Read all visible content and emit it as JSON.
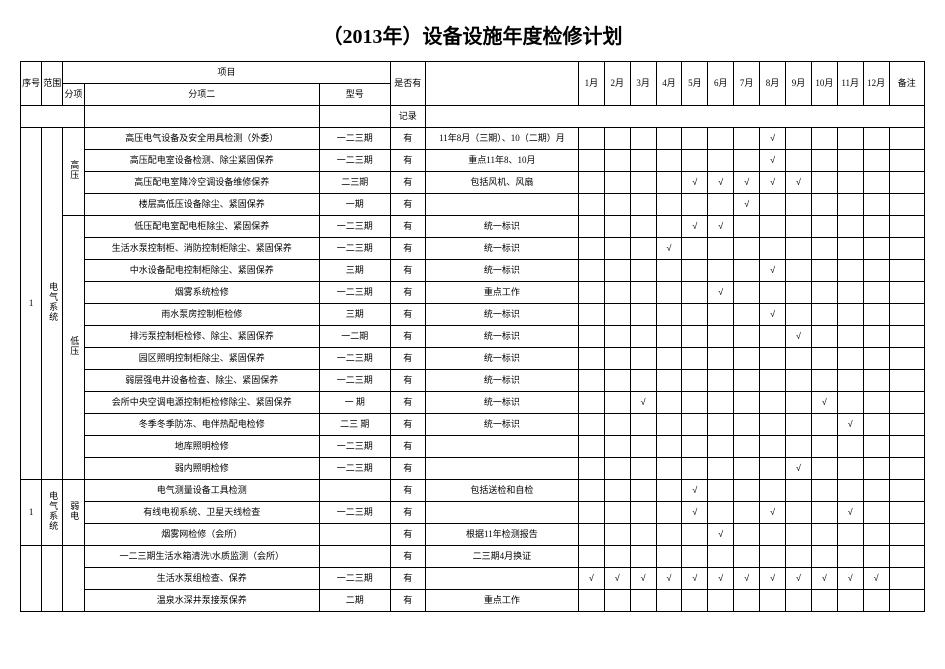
{
  "title": "（2013年）设备设施年度检修计划",
  "headers": {
    "seq": "序号",
    "scope": "范围",
    "project": "项目",
    "sub": "分项",
    "sub2": "分项二",
    "model": "型号",
    "sign": "是否有",
    "record": "记录",
    "months": [
      "1月",
      "2月",
      "3月",
      "4月",
      "5月",
      "6月",
      "7月",
      "8月",
      "9月",
      "10月",
      "11月",
      "12月"
    ],
    "note": "备注"
  },
  "groups": [
    {
      "seq": "1",
      "scope": "电气系统",
      "subgroups": [
        {
          "sub": "高压",
          "rows": [
            {
              "item": "高压电气设备及安全用具检测（外委）",
              "model": "一二三期",
              "sign": "有",
              "wide": "11年8月（三期）、10（二期）月",
              "marks": [
                "",
                "",
                "",
                "",
                "",
                "",
                "",
                "√",
                "",
                "",
                "",
                ""
              ]
            },
            {
              "item": "高压配电室设备检测、除尘紧固保养",
              "model": "一二三期",
              "sign": "有",
              "wide": "重点11年8、10月",
              "marks": [
                "",
                "",
                "",
                "",
                "",
                "",
                "",
                "√",
                "",
                "",
                "",
                ""
              ]
            },
            {
              "item": "高压配电室降冷空调设备维修保养",
              "model": "二三期",
              "sign": "有",
              "wide": "包括风机、风扇",
              "marks": [
                "",
                "",
                "",
                "",
                "√",
                "√",
                "√",
                "√",
                "√",
                "",
                "",
                ""
              ]
            },
            {
              "item": "楼层高低压设备除尘、紧固保养",
              "model": "一期",
              "sign": "有",
              "wide": "",
              "marks": [
                "",
                "",
                "",
                "",
                "",
                "",
                "√",
                "",
                "",
                "",
                "",
                ""
              ]
            }
          ]
        },
        {
          "sub": "低压",
          "rows": [
            {
              "item": "低压配电室配电柜除尘、紧固保养",
              "model": "一二三期",
              "sign": "有",
              "wide": "统一标识",
              "marks": [
                "",
                "",
                "",
                "",
                "√",
                "√",
                "",
                "",
                "",
                "",
                "",
                ""
              ]
            },
            {
              "item": "生活水泵控制柜、消防控制柜除尘、紧固保养",
              "model": "一二三期",
              "sign": "有",
              "wide": "统一标识",
              "marks": [
                "",
                "",
                "",
                "√",
                "",
                "",
                "",
                "",
                "",
                "",
                "",
                ""
              ]
            },
            {
              "item": "中水设备配电控制柜除尘、紧固保养",
              "model": "三期",
              "sign": "有",
              "wide": "统一标识",
              "marks": [
                "",
                "",
                "",
                "",
                "",
                "",
                "",
                "√",
                "",
                "",
                "",
                ""
              ]
            },
            {
              "item": "烟雾系统检修",
              "model": "一二三期",
              "sign": "有",
              "wide": "重点工作",
              "marks": [
                "",
                "",
                "",
                "",
                "",
                "√",
                "",
                "",
                "",
                "",
                "",
                ""
              ]
            },
            {
              "item": "雨水泵房控制柜检修",
              "model": "三期",
              "sign": "有",
              "wide": "统一标识",
              "marks": [
                "",
                "",
                "",
                "",
                "",
                "",
                "",
                "√",
                "",
                "",
                "",
                ""
              ]
            },
            {
              "item": "排污泵控制柜检修、除尘、紧固保养",
              "model": "一二期",
              "sign": "有",
              "wide": "统一标识",
              "marks": [
                "",
                "",
                "",
                "",
                "",
                "",
                "",
                "",
                "√",
                "",
                "",
                ""
              ]
            },
            {
              "item": "园区照明控制柜除尘、紧固保养",
              "model": "一二三期",
              "sign": "有",
              "wide": "统一标识",
              "marks": [
                "",
                "",
                "",
                "",
                "",
                "",
                "",
                "",
                "",
                "",
                "",
                ""
              ]
            },
            {
              "item": "弱层强电井设备检查、除尘、紧固保养",
              "model": "一二三期",
              "sign": "有",
              "wide": "统一标识",
              "marks": [
                "",
                "",
                "",
                "",
                "",
                "",
                "",
                "",
                "",
                "",
                "",
                ""
              ]
            },
            {
              "item": "会所中央空调电源控制柜检修除尘、紧固保养",
              "model": "一 期",
              "sign": "有",
              "wide": "统一标识",
              "marks": [
                "",
                "",
                "√",
                "",
                "",
                "",
                "",
                "",
                "",
                "√",
                "",
                ""
              ]
            },
            {
              "item": "冬季冬季防冻、电伴热配电检修",
              "model": "二三 期",
              "sign": "有",
              "wide": "统一标识",
              "marks": [
                "",
                "",
                "",
                "",
                "",
                "",
                "",
                "",
                "",
                "",
                "√",
                ""
              ]
            },
            {
              "item": "地库照明检修",
              "model": "一二三期",
              "sign": "有",
              "wide": "",
              "marks": [
                "",
                "",
                "",
                "",
                "",
                "",
                "",
                "",
                "",
                "",
                "",
                ""
              ]
            },
            {
              "item": "弱内照明检修",
              "model": "一二三期",
              "sign": "有",
              "wide": "",
              "marks": [
                "",
                "",
                "",
                "",
                "",
                "",
                "",
                "",
                "√",
                "",
                "",
                ""
              ]
            }
          ]
        }
      ]
    },
    {
      "seq": "1",
      "scope": "电气系统",
      "subgroups": [
        {
          "sub": "弱电",
          "rows": [
            {
              "item": "电气测量设备工具检测",
              "model": "",
              "sign": "有",
              "wide": "包括送检和自检",
              "marks": [
                "",
                "",
                "",
                "",
                "√",
                "",
                "",
                "",
                "",
                "",
                "",
                ""
              ]
            },
            {
              "item": "有线电视系统、卫星天线检查",
              "model": "一二三期",
              "sign": "有",
              "wide": "",
              "marks": [
                "",
                "",
                "",
                "",
                "√",
                "",
                "",
                "√",
                "",
                "",
                "√",
                ""
              ]
            },
            {
              "item": "烟雾网检修（会所）",
              "model": "",
              "sign": "有",
              "wide": "根据11年检测报告",
              "marks": [
                "",
                "",
                "",
                "",
                "",
                "√",
                "",
                "",
                "",
                "",
                "",
                ""
              ]
            }
          ]
        }
      ]
    },
    {
      "seq": "",
      "scope": "",
      "subgroups": [
        {
          "sub": "",
          "rows": [
            {
              "item": "一二三期生活水箱清洗\\水质监测（会所）",
              "model": "",
              "sign": "有",
              "wide": "二三期4月换证",
              "marks": [
                "",
                "",
                "",
                "",
                "",
                "",
                "",
                "",
                "",
                "",
                "",
                ""
              ]
            },
            {
              "item": "生活水泵组检查、保养",
              "model": "一二三期",
              "sign": "有",
              "wide": "",
              "marks": [
                "√",
                "√",
                "√",
                "√",
                "√",
                "√",
                "√",
                "√",
                "√",
                "√",
                "√",
                "√"
              ]
            },
            {
              "item": "温泉水深井泵接泵保养",
              "model": "二期",
              "sign": "有",
              "wide": "重点工作",
              "marks": [
                "",
                "",
                "",
                "",
                "",
                "",
                "",
                "",
                "",
                "",
                "",
                ""
              ]
            }
          ]
        }
      ]
    }
  ]
}
